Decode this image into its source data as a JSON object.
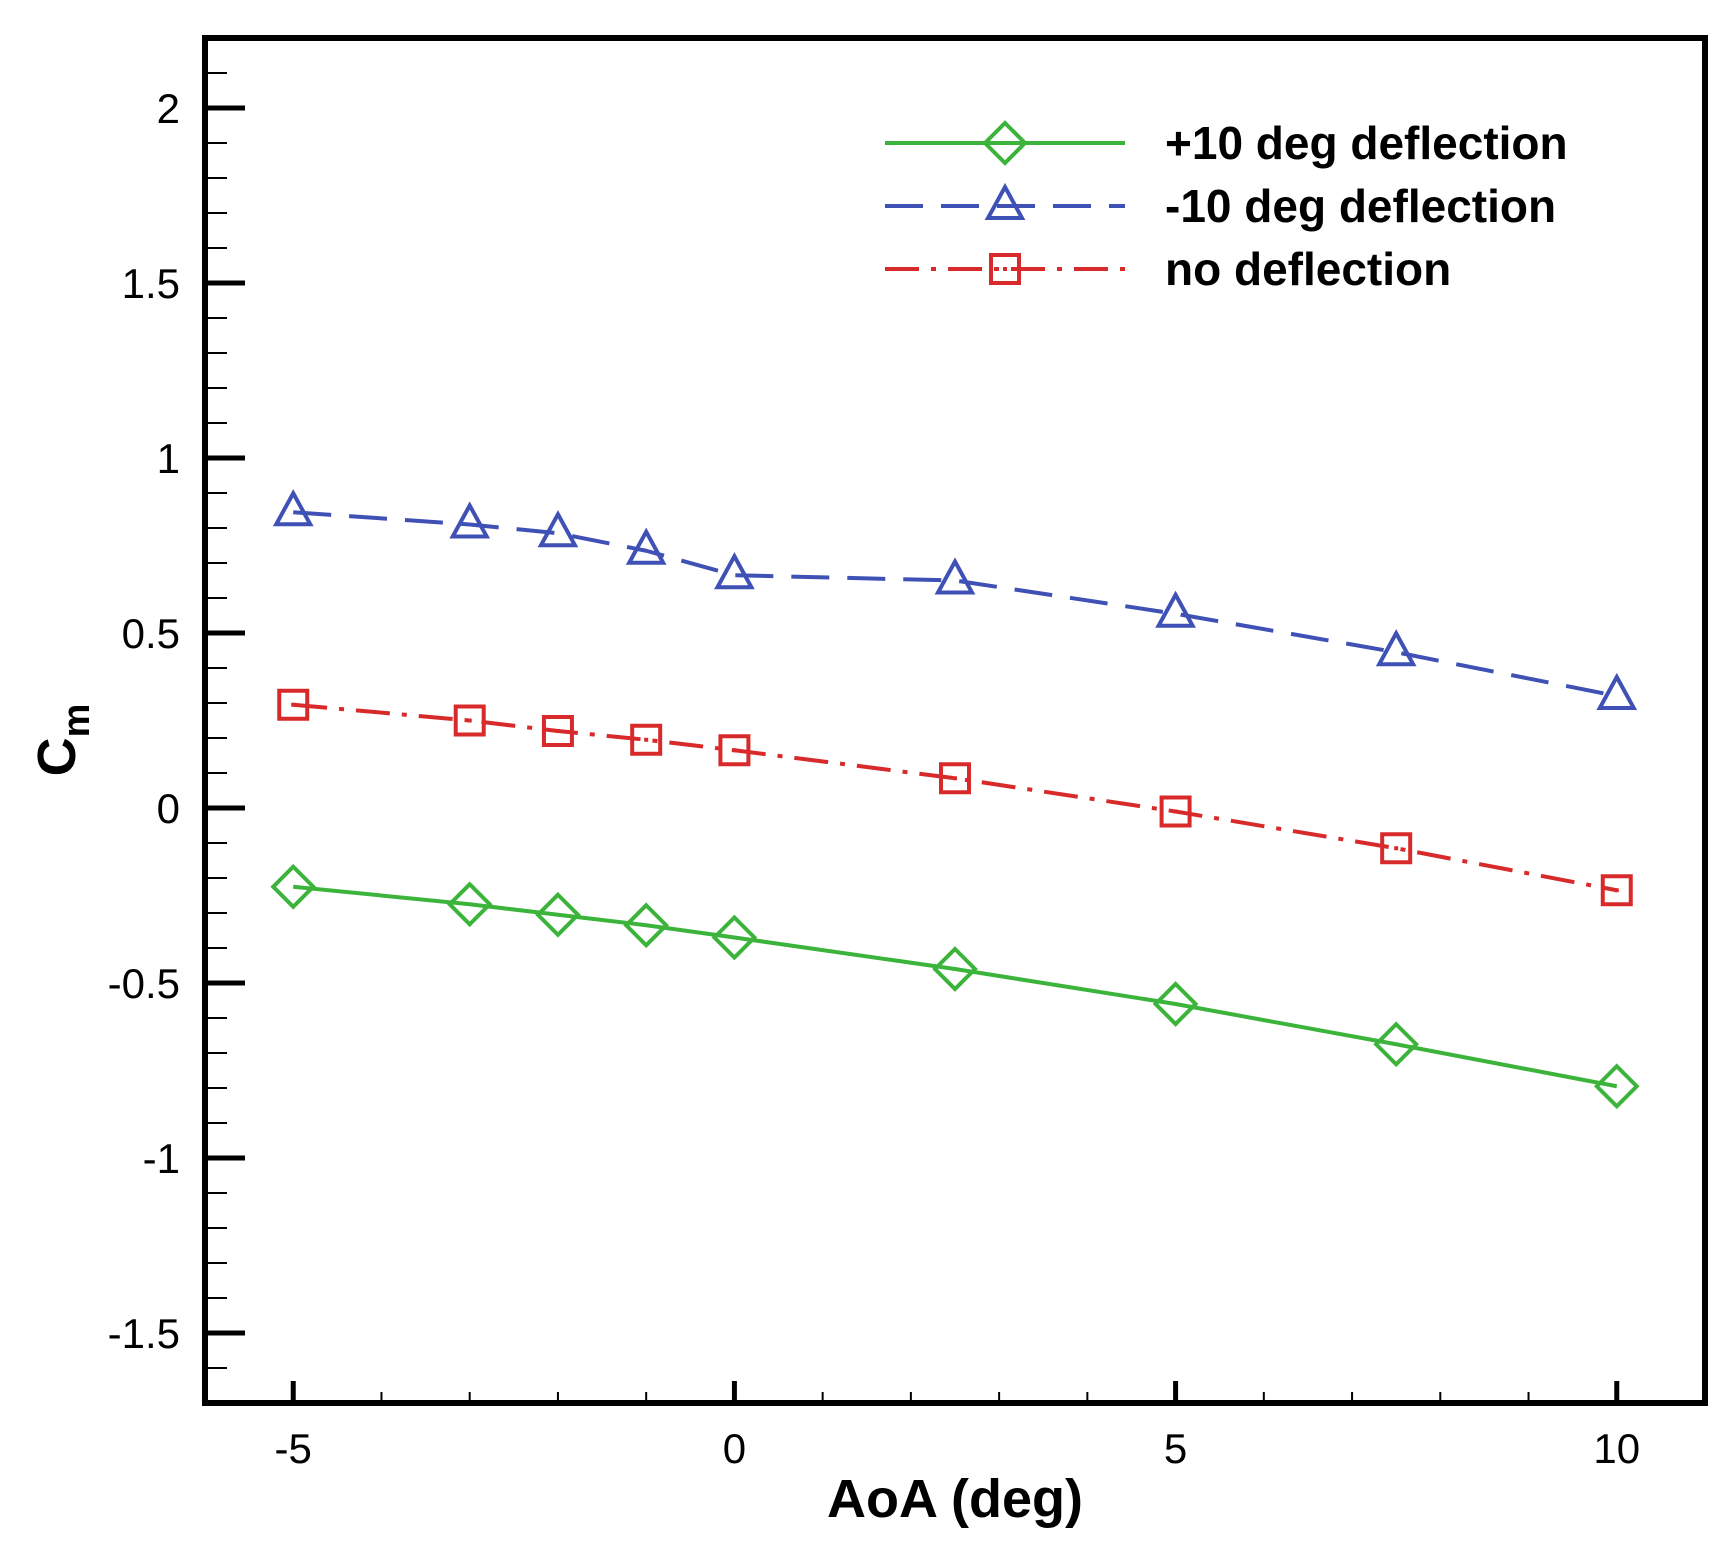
{
  "chart_data": {
    "type": "line",
    "xlabel": "AoA (deg)",
    "ylabel_main": "C",
    "ylabel_sub": "m",
    "xlim": [
      -6,
      11
    ],
    "ylim": [
      -1.7,
      2.2
    ],
    "xticks": [
      -5,
      0,
      5,
      10
    ],
    "xtick_labels": [
      "-5",
      "0",
      "5",
      "10"
    ],
    "yticks": [
      -1.5,
      -1,
      -0.5,
      0,
      0.5,
      1,
      1.5,
      2
    ],
    "ytick_labels": [
      "-1.5",
      "-1",
      "-0.5",
      "0",
      "0.5",
      "1",
      "1.5",
      "2"
    ],
    "x_minor_step": 1,
    "y_minor_step": 0.1,
    "grid": false,
    "legend_position": "top-right",
    "x": [
      -5,
      -3,
      -2,
      -1,
      0,
      2.5,
      5,
      7.5,
      10
    ],
    "series": [
      {
        "name": "+10 deg deflection",
        "color": "#3cb43c",
        "marker": "diamond",
        "dash": "solid",
        "values": [
          -0.225,
          -0.275,
          -0.305,
          -0.335,
          -0.37,
          -0.46,
          -0.56,
          -0.675,
          -0.795
        ]
      },
      {
        "name": "-10 deg deflection",
        "color": "#3f51b5",
        "marker": "triangle",
        "dash": "dashed",
        "values": [
          0.845,
          0.81,
          0.785,
          0.735,
          0.665,
          0.65,
          0.555,
          0.445,
          0.32
        ]
      },
      {
        "name": "no deflection",
        "color": "#d82a2a",
        "marker": "square",
        "dash": "dashdot",
        "values": [
          0.295,
          0.25,
          0.22,
          0.195,
          0.165,
          0.085,
          -0.01,
          -0.115,
          -0.235
        ]
      }
    ]
  }
}
